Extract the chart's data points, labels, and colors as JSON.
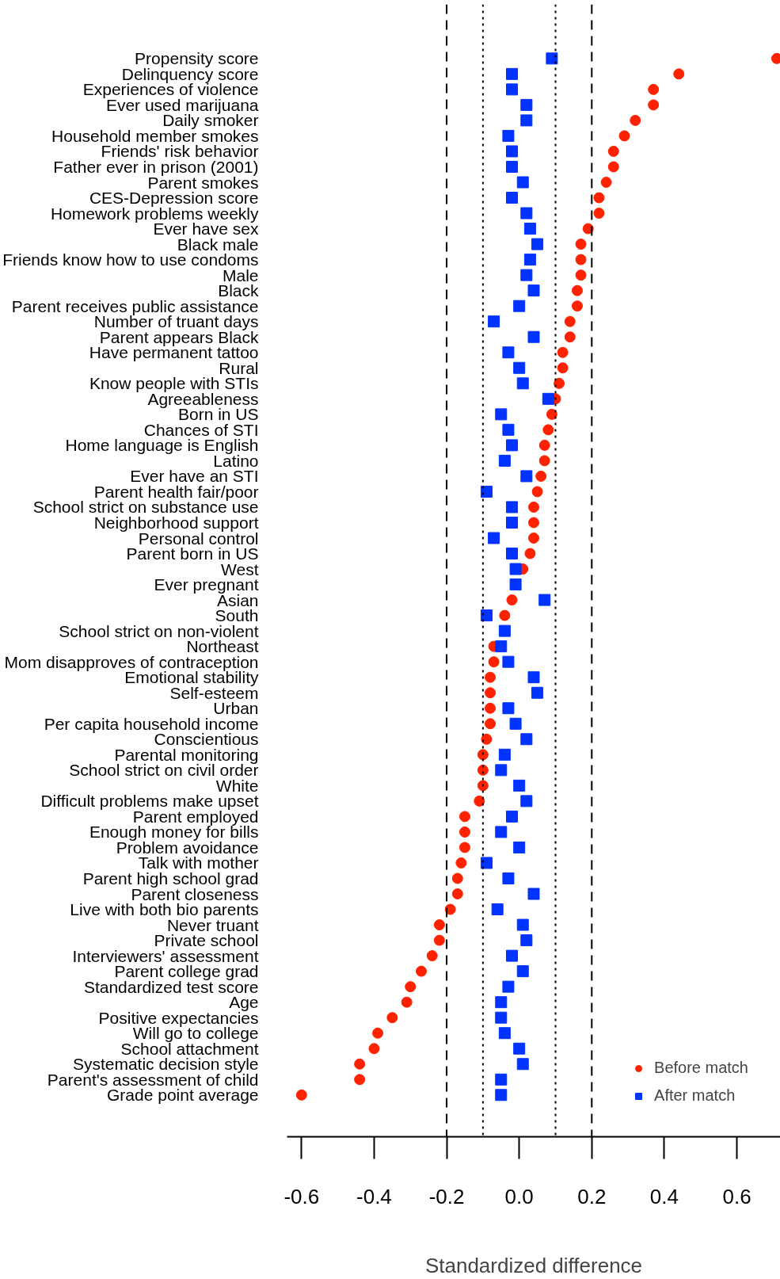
{
  "chart_data": {
    "type": "scatter",
    "orientation": "horizontal",
    "xlabel": "Standardized difference",
    "categories": [
      "Propensity score",
      "Delinquency score",
      "Experiences of violence",
      "Ever used marijuana",
      "Daily smoker",
      "Household member smokes",
      "Friends' risk behavior",
      "Father ever in prison (2001)",
      "Parent smokes",
      "CES-Depression score",
      "Homework problems weekly",
      "Ever have sex",
      "Black male",
      "Friends know how to use condoms",
      "Male",
      "Black",
      "Parent receives public assistance",
      "Number of truant days",
      "Parent appears Black",
      "Have permanent tattoo",
      "Rural",
      "Know people with STIs",
      "Agreeableness",
      "Born in US",
      "Chances of STI",
      "Home language is English",
      "Latino",
      "Ever have an STI",
      "Parent health fair/poor",
      "School strict on substance use",
      "Neighborhood support",
      "Personal control",
      "Parent born in US",
      "West",
      "Ever pregnant",
      "Asian",
      "South",
      "School strict on non-violent",
      "Northeast",
      "Mom disapproves of contraception",
      "Emotional stability",
      "Self-esteem",
      "Urban",
      "Per capita household income",
      "Conscientious",
      "Parental monitoring",
      "School strict on civil order",
      "White",
      "Difficult problems make upset",
      "Parent employed",
      "Enough money for bills",
      "Problem avoidance",
      "Talk with mother",
      "Parent high school grad",
      "Parent closeness",
      "Live with both bio parents",
      "Never truant",
      "Private school",
      "Interviewers' assessment",
      "Parent college grad",
      "Standardized test score",
      "Age",
      "Positive expectancies",
      "Will go to college",
      "School attachment",
      "Systematic decision style",
      "Parent's assessment of child",
      "Grade point average"
    ],
    "series": [
      {
        "name": "Before match",
        "color": "#ff2200",
        "marker": "circle",
        "values": [
          0.71,
          0.44,
          0.37,
          0.37,
          0.32,
          0.29,
          0.26,
          0.26,
          0.24,
          0.22,
          0.22,
          0.19,
          0.17,
          0.17,
          0.17,
          0.16,
          0.16,
          0.14,
          0.14,
          0.12,
          0.12,
          0.11,
          0.1,
          0.09,
          0.08,
          0.07,
          0.07,
          0.06,
          0.05,
          0.04,
          0.04,
          0.04,
          0.03,
          0.01,
          null,
          -0.02,
          -0.04,
          null,
          -0.07,
          -0.07,
          -0.08,
          -0.08,
          -0.08,
          -0.08,
          -0.09,
          -0.1,
          -0.1,
          -0.1,
          -0.11,
          -0.15,
          -0.15,
          -0.15,
          -0.16,
          -0.17,
          -0.17,
          -0.19,
          -0.22,
          -0.22,
          -0.24,
          -0.27,
          -0.3,
          -0.31,
          -0.35,
          -0.39,
          -0.4,
          -0.44,
          -0.44,
          -0.6
        ]
      },
      {
        "name": "After match",
        "color": "#0033ff",
        "marker": "square",
        "values": [
          0.09,
          -0.02,
          -0.02,
          0.02,
          0.02,
          -0.03,
          -0.02,
          -0.02,
          0.01,
          -0.02,
          0.02,
          0.03,
          0.05,
          0.03,
          0.02,
          0.04,
          0.0,
          -0.07,
          0.04,
          -0.03,
          0.0,
          0.01,
          0.08,
          -0.05,
          -0.03,
          -0.02,
          -0.04,
          0.02,
          -0.09,
          -0.02,
          -0.02,
          -0.07,
          -0.02,
          -0.01,
          -0.01,
          0.07,
          -0.09,
          -0.04,
          -0.05,
          -0.03,
          0.04,
          0.05,
          -0.03,
          -0.01,
          0.02,
          -0.04,
          -0.05,
          0.0,
          0.02,
          -0.02,
          -0.05,
          0.0,
          -0.09,
          -0.03,
          0.04,
          -0.06,
          0.01,
          0.02,
          -0.02,
          0.01,
          -0.03,
          -0.05,
          -0.05,
          -0.04,
          0.0,
          0.01,
          -0.05,
          -0.05
        ]
      }
    ],
    "xlim": [
      -0.64,
      0.72
    ],
    "xticks": [
      -0.6,
      -0.4,
      -0.2,
      {
        "value": 0,
        "label": "0.0"
      },
      0.2,
      0.4,
      0.6
    ],
    "ref_lines": [
      {
        "axis": "x",
        "value": -0.2,
        "line_style": "dashed"
      },
      {
        "axis": "x",
        "value": 0.2,
        "line_style": "dashed"
      },
      {
        "axis": "x",
        "value": -0.1,
        "line_style": "dotted"
      },
      {
        "axis": "x",
        "value": 0.1,
        "line_style": "dotted"
      }
    ],
    "legend": "bottom right",
    "grid": false
  }
}
